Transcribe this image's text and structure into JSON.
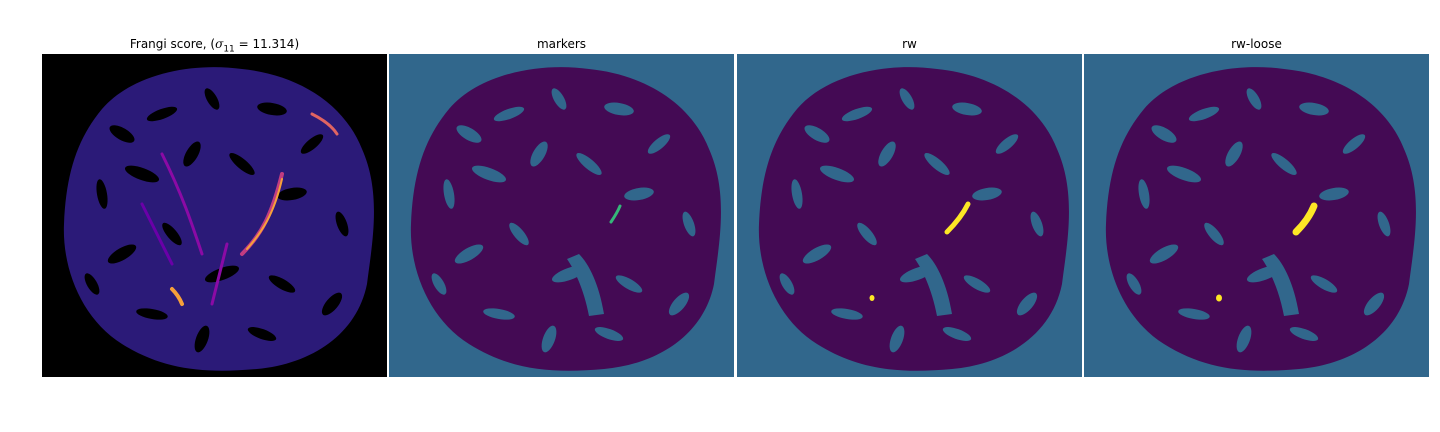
{
  "panels": [
    {
      "id": "frangi",
      "title_prefix": "Frangi score, (",
      "title_symbol": "σ",
      "title_sub": "11",
      "title_suffix": " = 11.314)",
      "colormap": "plasma-like",
      "background_color": "#000000",
      "tissue_color": "#2b1a78",
      "vessel_highlight_color": "#f7a03a"
    },
    {
      "id": "markers",
      "title": "markers",
      "background_color": "#31678c",
      "tissue_color": "#440a54",
      "marker_color": "#35b779"
    },
    {
      "id": "rw",
      "title": "rw",
      "background_color": "#31678c",
      "tissue_color": "#440a54",
      "label_color": "#fde725"
    },
    {
      "id": "rw-loose",
      "title": "rw-loose",
      "background_color": "#31678c",
      "tissue_color": "#440a54",
      "label_color": "#fde725"
    }
  ]
}
